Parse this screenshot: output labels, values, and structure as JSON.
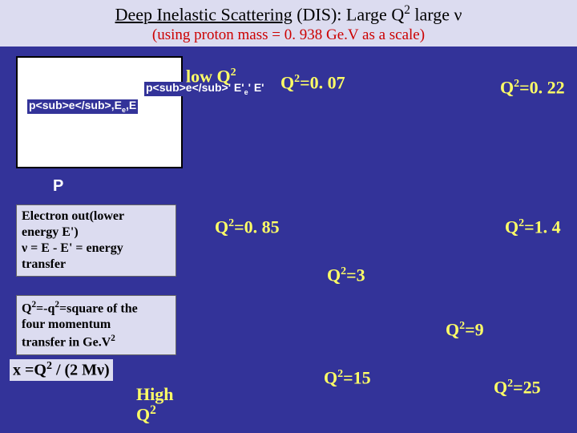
{
  "title": {
    "line1_a": "Deep Inelastic Scattering",
    "line1_b": " (DIS):  Large Q",
    "line1_sup": "2",
    "line1_c": " large ν",
    "line2": "(using proton mass = 0. 938  Ge.V as a scale)"
  },
  "diagram": {
    "pe_e_html": "p<sub>e</sub>,E",
    "pe_ep_html": "p<sub>e</sub>' E'",
    "p_label": "P"
  },
  "box_electron": {
    "l1": "Electron out(lower",
    "l2": "energy E')",
    "l3": "ν =  E - E' = energy",
    "l4": "transfer"
  },
  "box_q2def": {
    "l1_a": "Q",
    "l1_sup1": "2",
    "l1_b": "=-q",
    "l1_sup2": "2",
    "l1_c": "=square of the",
    "l2": "four momentum",
    "l3_a": "transfer in Ge.V",
    "l3_sup": "2"
  },
  "x_formula": {
    "a": "x =Q",
    "sup": "2",
    "b": " / (2 Mν)"
  },
  "labels": {
    "lowq2_a": "low Q",
    "lowq2_sup": "2",
    "highq2_a": "High",
    "highq2_b": "Q",
    "highq2_sup": "2",
    "q007_a": "Q",
    "q007_sup": "2",
    "q007_b": "=0. 07",
    "q022_a": "Q",
    "q022_sup": "2",
    "q022_b": "=0. 22",
    "q085_a": "Q",
    "q085_sup": "2",
    "q085_b": "=0. 85",
    "q14_a": "Q",
    "q14_sup": "2",
    "q14_b": "=1. 4",
    "q3_a": "Q",
    "q3_sup": "2",
    "q3_b": "=3",
    "q9_a": "Q",
    "q9_sup": "2",
    "q9_b": "=9",
    "q15_a": "Q",
    "q15_sup": "2",
    "q15_b": "=15",
    "q25_a": "Q",
    "q25_sup": "2",
    "q25_b": "=25"
  }
}
